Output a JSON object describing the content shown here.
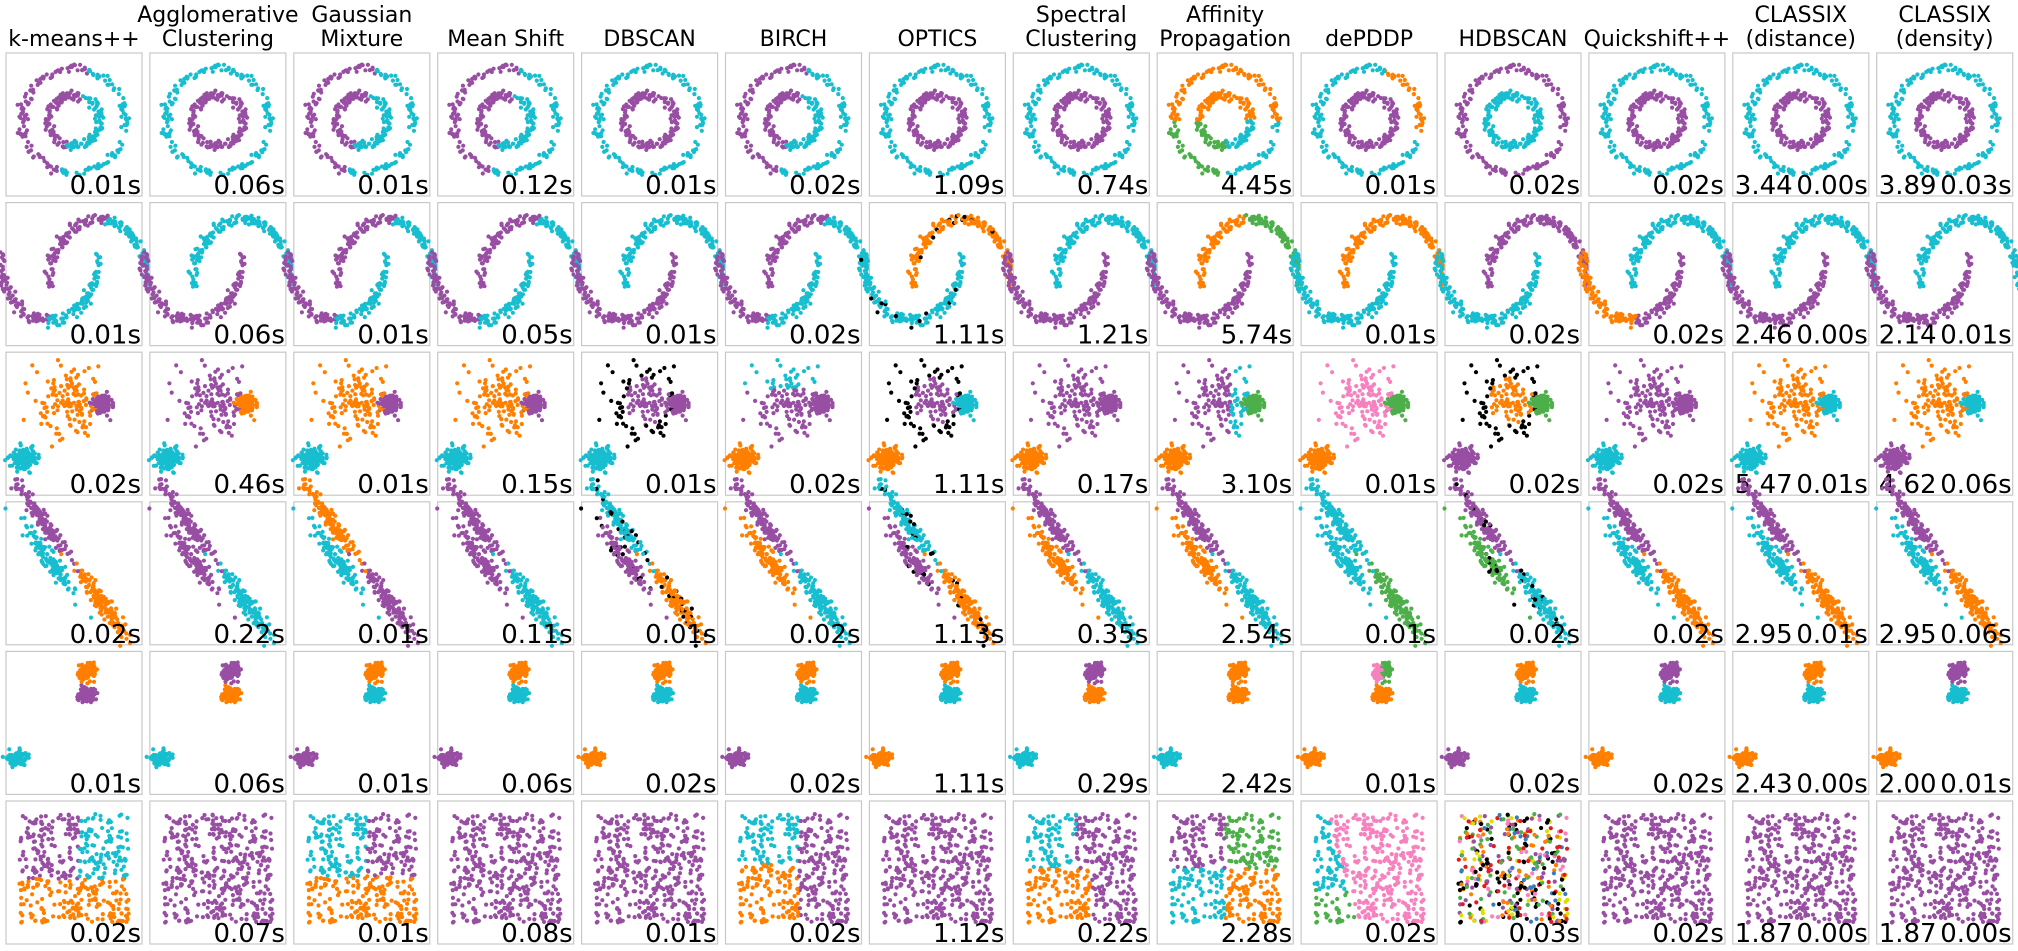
{
  "chart_data": {
    "type": "scatter",
    "title": "",
    "columns": [
      [
        "k-means++"
      ],
      [
        "Agglomerative",
        "Clustering"
      ],
      [
        "Gaussian",
        "Mixture"
      ],
      [
        "Mean Shift"
      ],
      [
        "DBSCAN"
      ],
      [
        "BIRCH"
      ],
      [
        "OPTICS"
      ],
      [
        "Spectral",
        "Clustering"
      ],
      [
        "Affinity",
        "Propagation"
      ],
      [
        "dePDDP"
      ],
      [
        "HDBSCAN"
      ],
      [
        "Quickshift++"
      ],
      [
        "CLASSIX",
        "(distance)"
      ],
      [
        "CLASSIX",
        "(density)"
      ]
    ],
    "datasets": [
      "noisy_circles",
      "noisy_moons",
      "varied_blobs",
      "anisotropic_blobs",
      "blobs",
      "no_structure"
    ],
    "colors": {
      "purple": "#984ea3",
      "cyan": "#17becf",
      "orange": "#ff7f00",
      "green": "#4daf4a",
      "pink": "#f781bf",
      "red": "#e41a1c",
      "blue": "#377eb8",
      "yellow": "#dede00",
      "noise": "#000000"
    },
    "times": [
      [
        "0.01s",
        "0.06s",
        "0.01s",
        "0.12s",
        "0.01s",
        "0.02s",
        "1.09s",
        "0.74s",
        "4.45s",
        "0.01s",
        "0.02s",
        "0.02s",
        "0.00s",
        "0.03s"
      ],
      [
        "0.01s",
        "0.06s",
        "0.01s",
        "0.05s",
        "0.01s",
        "0.02s",
        "1.11s",
        "1.21s",
        "5.74s",
        "0.01s",
        "0.02s",
        "0.02s",
        "0.00s",
        "0.01s"
      ],
      [
        "0.02s",
        "0.46s",
        "0.01s",
        "0.15s",
        "0.01s",
        "0.02s",
        "1.11s",
        "0.17s",
        "3.10s",
        "0.01s",
        "0.02s",
        "0.02s",
        "0.01s",
        "0.06s"
      ],
      [
        "0.02s",
        "0.22s",
        "0.01s",
        "0.11s",
        "0.01s",
        "0.02s",
        "1.13s",
        "0.35s",
        "2.54s",
        "0.01s",
        "0.02s",
        "0.02s",
        "0.01s",
        "0.06s"
      ],
      [
        "0.01s",
        "0.06s",
        "0.01s",
        "0.06s",
        "0.02s",
        "0.02s",
        "1.11s",
        "0.29s",
        "2.42s",
        "0.01s",
        "0.02s",
        "0.02s",
        "0.00s",
        "0.01s"
      ],
      [
        "0.02s",
        "0.07s",
        "0.01s",
        "0.08s",
        "0.01s",
        "0.02s",
        "1.12s",
        "0.22s",
        "2.28s",
        "0.02s",
        "0.03s",
        "0.02s",
        "0.00s",
        "0.00s"
      ]
    ],
    "classix_scores": [
      [
        "3.44",
        "3.89"
      ],
      [
        "2.46",
        "2.14"
      ],
      [
        "5.47",
        "4.62"
      ],
      [
        "2.95",
        "2.95"
      ],
      [
        "2.43",
        "2.00"
      ],
      [
        "1.87",
        "1.87"
      ]
    ],
    "xlabel": "",
    "ylabel": "",
    "grid": false,
    "axis_ticks": false
  }
}
